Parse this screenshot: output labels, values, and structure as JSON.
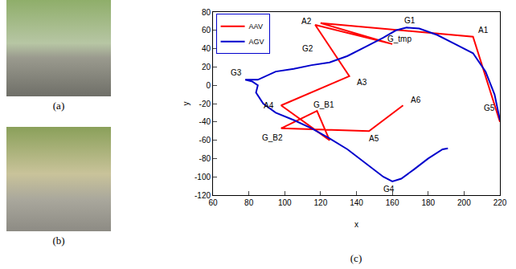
{
  "panels": [
    {
      "label": "(a)"
    },
    {
      "label": "(b)"
    }
  ],
  "chart_data": {
    "type": "line",
    "label": "(c)",
    "x_label": "x",
    "y_label": "y",
    "xlim": [
      60,
      220
    ],
    "xticks": [
      60,
      80,
      100,
      120,
      140,
      160,
      180,
      200,
      220
    ],
    "ylim": [
      -120,
      80
    ],
    "yticks": [
      -120,
      -100,
      -80,
      -60,
      -40,
      -20,
      0,
      20,
      40,
      60,
      80
    ],
    "legend": "upper left",
    "grid": false,
    "series": [
      {
        "name": "AAV",
        "color": "#ff0000",
        "x": [
          220,
          205,
          120,
          160,
          117,
          136,
          98,
          125,
          118,
          98,
          147,
          166
        ],
        "values": [
          -40,
          53,
          68,
          45,
          66,
          10,
          -22,
          -60,
          -28,
          -47,
          -50,
          -22
        ]
      },
      {
        "name": "AGV",
        "color": "#0000cc",
        "x": [
          220,
          217,
          212,
          205,
          195,
          185,
          175,
          168,
          162,
          155,
          145,
          135,
          125,
          115,
          105,
          95,
          85,
          80,
          78,
          82,
          85,
          84,
          88,
          95,
          105,
          115,
          125,
          135,
          145,
          155,
          160,
          165,
          172,
          180,
          188,
          191
        ],
        "values": [
          -38,
          -10,
          15,
          35,
          45,
          55,
          62,
          63,
          60,
          52,
          42,
          32,
          25,
          22,
          18,
          15,
          6,
          6,
          6,
          4,
          0,
          -8,
          -20,
          -30,
          -38,
          -47,
          -58,
          -70,
          -85,
          -100,
          -105,
          -102,
          -92,
          -80,
          -70,
          -69
        ]
      }
    ],
    "annotations": [
      {
        "text": "A1",
        "x": 211,
        "y": 60
      },
      {
        "text": "A2",
        "x": 112,
        "y": 70
      },
      {
        "text": "G1",
        "x": 170,
        "y": 71
      },
      {
        "text": "G_tmp",
        "x": 164,
        "y": 51
      },
      {
        "text": "G2",
        "x": 113,
        "y": 40
      },
      {
        "text": "A3",
        "x": 143,
        "y": 3
      },
      {
        "text": "G3",
        "x": 73,
        "y": 14
      },
      {
        "text": "A4",
        "x": 91,
        "y": -22
      },
      {
        "text": "G_B1",
        "x": 122,
        "y": -21
      },
      {
        "text": "A6",
        "x": 173,
        "y": -16
      },
      {
        "text": "G_B2",
        "x": 93,
        "y": -57
      },
      {
        "text": "A5",
        "x": 150,
        "y": -58
      },
      {
        "text": "G4",
        "x": 158,
        "y": -113
      },
      {
        "text": "G5",
        "x": 214,
        "y": -25
      }
    ]
  }
}
